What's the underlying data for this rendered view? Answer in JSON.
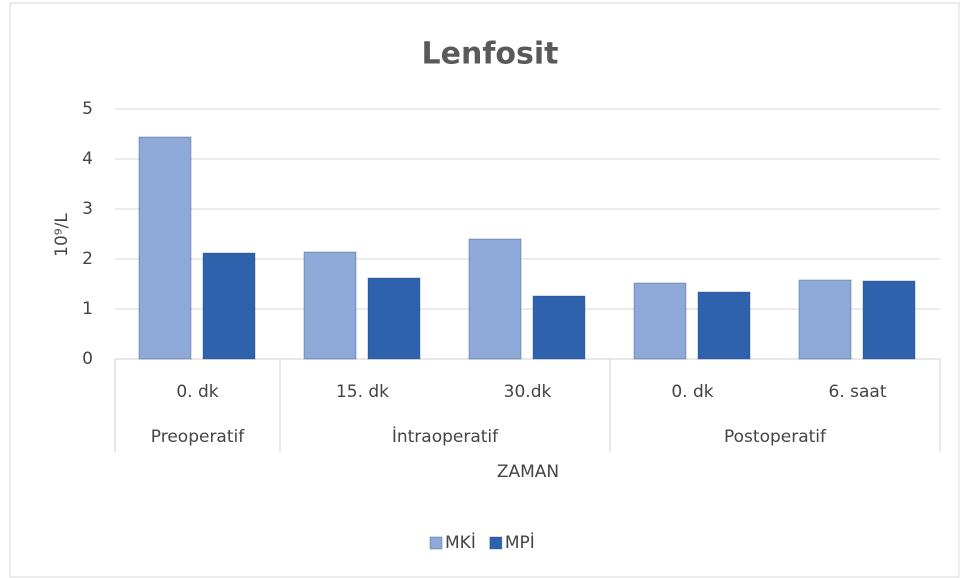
{
  "chart_data": {
    "type": "bar",
    "title": "Lenfosit",
    "y_label": "10⁹/L",
    "x_label": "ZAMAN",
    "groups": [
      {
        "name": "Preoperatif",
        "categories": [
          "0. dk"
        ]
      },
      {
        "name": "İntraoperatif",
        "categories": [
          "15. dk",
          "30.dk"
        ]
      },
      {
        "name": "Postoperatif",
        "categories": [
          "0. dk",
          "6. saat"
        ]
      }
    ],
    "series": [
      {
        "name": "MKİ",
        "color": "#8ea9d8",
        "values": [
          4.44,
          2.14,
          2.4,
          1.52,
          1.58
        ]
      },
      {
        "name": "MPİ",
        "color": "#2e62ad",
        "values": [
          2.12,
          1.62,
          1.26,
          1.34,
          1.56
        ]
      }
    ],
    "ylim": [
      0,
      5
    ],
    "yticks": [
      0,
      1,
      2,
      3,
      4,
      5
    ],
    "grid": true,
    "legend": "bottom"
  }
}
